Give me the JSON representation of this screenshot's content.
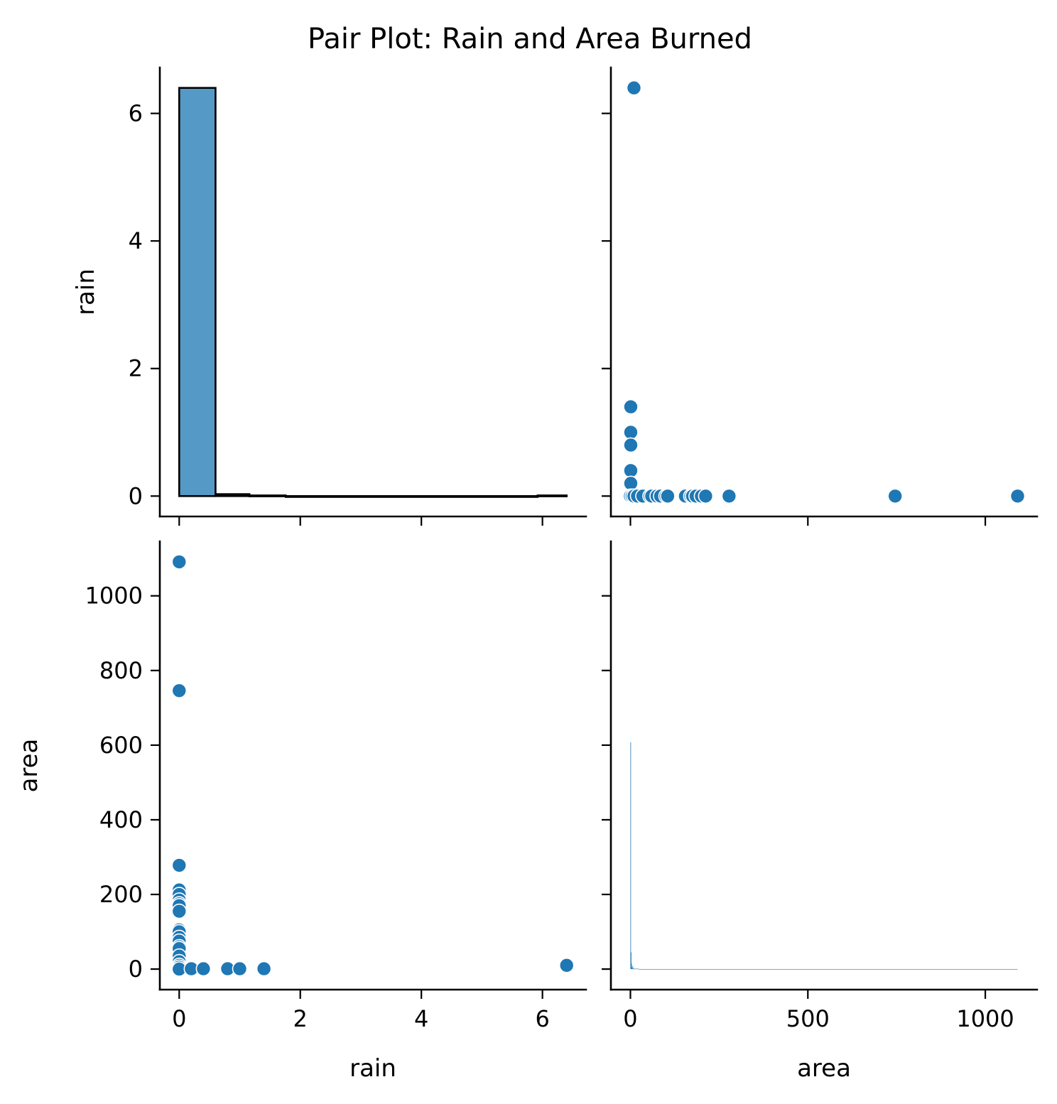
{
  "title": "Pair Plot: Rain and Area Burned",
  "colors": {
    "marker": "#1f77b4",
    "hist_fill": "#5599c7",
    "marker_edge": "#ffffff",
    "axis": "#000000"
  },
  "chart_data": [
    {
      "panel": "rain-vs-rain",
      "type": "bar",
      "x": "rain",
      "xlabel": "",
      "ylabel": "rain",
      "xlim": [
        -0.32,
        6.72
      ],
      "ylim": [
        -0.32,
        6.72
      ],
      "xticks": [
        0,
        2,
        4,
        6
      ],
      "xticklabels": [],
      "yticks": [
        0,
        2,
        4,
        6
      ],
      "yticklabels": [
        "0",
        "2",
        "4",
        "6"
      ],
      "bins": [
        {
          "x0": 0.0,
          "x1": 0.6,
          "count": 6.4
        },
        {
          "x0": 0.6,
          "x1": 1.16,
          "count": 0.03
        },
        {
          "x0": 1.16,
          "x1": 1.76,
          "count": 0.01
        },
        {
          "x0": 1.76,
          "x1": 5.92,
          "count": 0.0
        },
        {
          "x0": 5.92,
          "x1": 6.4,
          "count": 0.01
        }
      ]
    },
    {
      "panel": "rain-vs-area",
      "type": "scatter",
      "xlabel": "",
      "ylabel": "",
      "xlim": [
        -55,
        1146
      ],
      "ylim": [
        -0.32,
        6.72
      ],
      "xticks": [
        0,
        500,
        1000
      ],
      "xticklabels": [],
      "yticks": [
        0,
        2,
        4,
        6
      ],
      "yticklabels": [],
      "points": [
        [
          10,
          6.4
        ],
        [
          1,
          1.4
        ],
        [
          1,
          1.0
        ],
        [
          1,
          0.8
        ],
        [
          1,
          0.4
        ],
        [
          1,
          0.2
        ],
        [
          0,
          0
        ],
        [
          5,
          0
        ],
        [
          10,
          0
        ],
        [
          20,
          0
        ],
        [
          35,
          0
        ],
        [
          55,
          0
        ],
        [
          60,
          0
        ],
        [
          75,
          0
        ],
        [
          85,
          0
        ],
        [
          100,
          0
        ],
        [
          105,
          0
        ],
        [
          155,
          0
        ],
        [
          170,
          0
        ],
        [
          175,
          0
        ],
        [
          185,
          0
        ],
        [
          200,
          0
        ],
        [
          212,
          0
        ],
        [
          278,
          0
        ],
        [
          746,
          0
        ],
        [
          1091,
          0
        ]
      ]
    },
    {
      "panel": "area-vs-rain",
      "type": "scatter",
      "xlabel": "rain",
      "ylabel": "area",
      "xlim": [
        -0.32,
        6.72
      ],
      "ylim": [
        -55,
        1146
      ],
      "xticks": [
        0,
        2,
        4,
        6
      ],
      "xticklabels": [
        "0",
        "2",
        "4",
        "6"
      ],
      "yticks": [
        0,
        200,
        400,
        600,
        800,
        1000
      ],
      "yticklabels": [
        "0",
        "200",
        "400",
        "600",
        "800",
        "1000"
      ],
      "points": [
        [
          0,
          1091
        ],
        [
          0,
          746
        ],
        [
          0,
          278
        ],
        [
          0,
          212
        ],
        [
          0,
          200
        ],
        [
          0,
          185
        ],
        [
          0,
          175
        ],
        [
          0,
          170
        ],
        [
          0,
          155
        ],
        [
          0,
          105
        ],
        [
          0,
          100
        ],
        [
          0,
          85
        ],
        [
          0,
          75
        ],
        [
          0,
          60
        ],
        [
          0,
          55
        ],
        [
          0,
          35
        ],
        [
          0,
          20
        ],
        [
          0,
          10
        ],
        [
          0,
          5
        ],
        [
          0,
          0
        ],
        [
          0.2,
          1
        ],
        [
          0.4,
          1
        ],
        [
          0.8,
          1
        ],
        [
          1.0,
          1
        ],
        [
          1.4,
          1
        ],
        [
          6.4,
          10
        ]
      ]
    },
    {
      "panel": "area-vs-area",
      "type": "bar",
      "x": "area",
      "xlabel": "area",
      "ylabel": "",
      "xlim": [
        -55,
        1146
      ],
      "ylim": [
        -55,
        1146
      ],
      "xticks": [
        0,
        500,
        1000
      ],
      "xticklabels": [
        "0",
        "500",
        "1000"
      ],
      "yticks": [
        0,
        200,
        400,
        600,
        800,
        1000
      ],
      "yticklabels": [],
      "bins": [
        {
          "x0": 0.0,
          "x1": 1.2,
          "count": 608
        },
        {
          "x0": 1.2,
          "x1": 2.4,
          "count": 45
        },
        {
          "x0": 2.4,
          "x1": 3.6,
          "count": 15
        },
        {
          "x0": 3.6,
          "x1": 4.8,
          "count": 5
        },
        {
          "x0": 4.8,
          "x1": 6.0,
          "count": 1
        },
        {
          "x0": 6.0,
          "x1": 7.2,
          "count": 8
        },
        {
          "x0": 7.2,
          "x1": 9.6,
          "count": 2
        },
        {
          "x0": 9.6,
          "x1": 12.0,
          "count": 1
        },
        {
          "x0": 12.0,
          "x1": 24.0,
          "count": 1
        },
        {
          "x0": 24.0,
          "x1": 1091.0,
          "count": 0
        }
      ]
    }
  ]
}
